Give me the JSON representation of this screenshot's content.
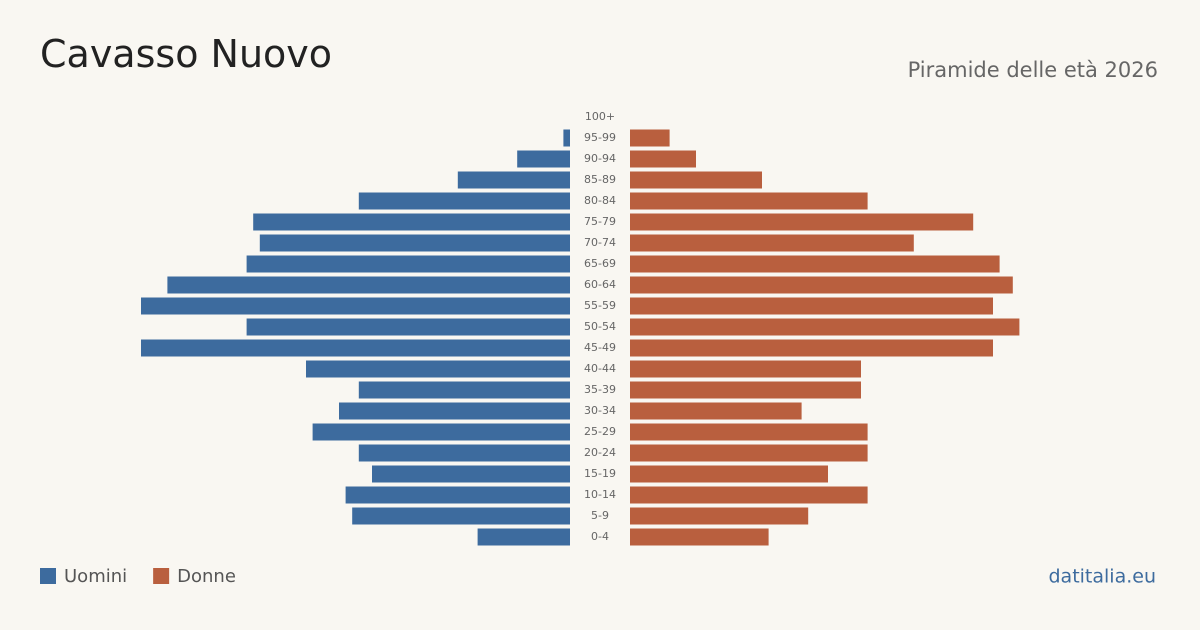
{
  "chart_data": {
    "type": "pyramid",
    "title": "Cavasso Nuovo",
    "subtitle": "Piramide delle età 2026",
    "source": "datitalia.eu",
    "categories": [
      "100+",
      "95-99",
      "90-94",
      "85-89",
      "80-84",
      "75-79",
      "70-74",
      "65-69",
      "60-64",
      "55-59",
      "50-54",
      "45-49",
      "40-44",
      "35-39",
      "30-34",
      "25-29",
      "20-24",
      "15-19",
      "10-14",
      "5-9",
      "0-4"
    ],
    "series": [
      {
        "name": "Uomini",
        "color": "#3d6b9e",
        "values": [
          0,
          1,
          8,
          17,
          32,
          48,
          47,
          49,
          61,
          65,
          49,
          65,
          40,
          32,
          35,
          39,
          32,
          30,
          34,
          33,
          14
        ]
      },
      {
        "name": "Donne",
        "color": "#b95f3e",
        "values": [
          0,
          6,
          10,
          20,
          36,
          52,
          43,
          56,
          58,
          55,
          59,
          55,
          35,
          35,
          26,
          36,
          36,
          30,
          36,
          27,
          21
        ]
      }
    ]
  }
}
